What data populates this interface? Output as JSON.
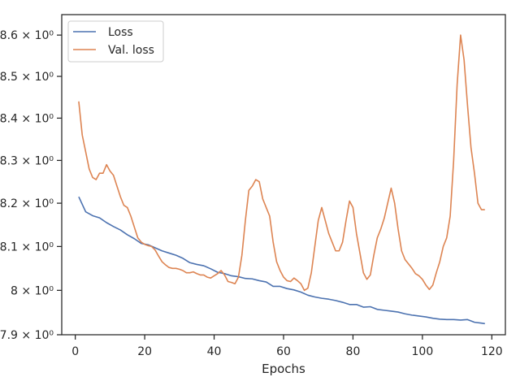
{
  "chart_data": {
    "type": "line",
    "xlabel": "Epochs",
    "ylabel": "",
    "xlim": [
      -3.9,
      123.9
    ],
    "ylim": [
      7.9,
      8.65
    ],
    "yscale": "log",
    "grid": false,
    "legend_position": "top-left",
    "x_ticks": [
      {
        "value": 0,
        "label": "0"
      },
      {
        "value": 20,
        "label": "20"
      },
      {
        "value": 40,
        "label": "40"
      },
      {
        "value": 60,
        "label": "60"
      },
      {
        "value": 80,
        "label": "80"
      },
      {
        "value": 100,
        "label": "100"
      },
      {
        "value": 120,
        "label": "120"
      }
    ],
    "y_ticks": [
      {
        "value": 7.9,
        "label": "7.9 × 10⁰"
      },
      {
        "value": 8.0,
        "label": "8 × 10⁰"
      },
      {
        "value": 8.1,
        "label": "8.1 × 10⁰"
      },
      {
        "value": 8.2,
        "label": "8.2 × 10⁰"
      },
      {
        "value": 8.3,
        "label": "8.3 × 10⁰"
      },
      {
        "value": 8.4,
        "label": "8.4 × 10⁰"
      },
      {
        "value": 8.5,
        "label": "8.5 × 10⁰"
      },
      {
        "value": 8.6,
        "label": "8.6 × 10⁰"
      }
    ],
    "series": [
      {
        "name": "Loss",
        "color": "#4c72b0",
        "x": [
          1,
          3,
          5,
          7,
          9,
          11,
          13,
          15,
          17,
          19,
          21,
          23,
          25,
          27,
          29,
          31,
          33,
          35,
          37,
          39,
          41,
          43,
          45,
          47,
          49,
          51,
          53,
          55,
          57,
          59,
          61,
          63,
          65,
          67,
          69,
          71,
          73,
          75,
          77,
          79,
          81,
          83,
          85,
          87,
          89,
          91,
          93,
          95,
          97,
          99,
          101,
          103,
          105,
          107,
          109,
          111,
          113,
          115,
          117,
          118
        ],
        "y": [
          8.215,
          8.18,
          8.171,
          8.166,
          8.155,
          8.146,
          8.138,
          8.127,
          8.118,
          8.107,
          8.104,
          8.097,
          8.09,
          8.085,
          8.08,
          8.073,
          8.063,
          8.059,
          8.056,
          8.049,
          8.041,
          8.038,
          8.033,
          8.031,
          8.027,
          8.026,
          8.022,
          8.019,
          8.009,
          8.009,
          8.004,
          8.001,
          7.996,
          7.989,
          7.985,
          7.982,
          7.98,
          7.977,
          7.973,
          7.968,
          7.968,
          7.962,
          7.963,
          7.957,
          7.955,
          7.953,
          7.951,
          7.947,
          7.944,
          7.942,
          7.94,
          7.937,
          7.935,
          7.934,
          7.934,
          7.933,
          7.934,
          7.928,
          7.926,
          7.925
        ]
      },
      {
        "name": "Val. loss",
        "color": "#dd8452",
        "x": [
          1,
          2,
          3,
          4,
          5,
          6,
          7,
          8,
          9,
          10,
          11,
          12,
          13,
          14,
          15,
          16,
          17,
          18,
          19,
          20,
          21,
          22,
          23,
          24,
          25,
          26,
          27,
          28,
          29,
          30,
          31,
          32,
          33,
          34,
          35,
          36,
          37,
          38,
          39,
          40,
          41,
          42,
          43,
          44,
          45,
          46,
          47,
          48,
          49,
          50,
          51,
          52,
          53,
          54,
          55,
          56,
          57,
          58,
          59,
          60,
          61,
          62,
          63,
          64,
          65,
          66,
          67,
          68,
          69,
          70,
          71,
          72,
          73,
          74,
          75,
          76,
          77,
          78,
          79,
          80,
          81,
          82,
          83,
          84,
          85,
          86,
          87,
          88,
          89,
          90,
          91,
          92,
          93,
          94,
          95,
          96,
          97,
          98,
          99,
          100,
          101,
          102,
          103,
          104,
          105,
          106,
          107,
          108,
          109,
          110,
          111,
          112,
          113,
          114,
          115,
          116,
          117,
          118
        ],
        "y": [
          8.44,
          8.36,
          8.32,
          8.28,
          8.26,
          8.255,
          8.27,
          8.27,
          8.29,
          8.275,
          8.265,
          8.24,
          8.215,
          8.195,
          8.19,
          8.17,
          8.145,
          8.12,
          8.11,
          8.105,
          8.102,
          8.1,
          8.092,
          8.078,
          8.065,
          8.058,
          8.052,
          8.05,
          8.05,
          8.048,
          8.045,
          8.04,
          8.04,
          8.042,
          8.038,
          8.035,
          8.035,
          8.03,
          8.028,
          8.033,
          8.038,
          8.045,
          8.035,
          8.02,
          8.018,
          8.015,
          8.03,
          8.08,
          8.16,
          8.23,
          8.24,
          8.255,
          8.25,
          8.21,
          8.19,
          8.17,
          8.11,
          8.065,
          8.045,
          8.03,
          8.022,
          8.02,
          8.028,
          8.022,
          8.015,
          8.0,
          8.005,
          8.04,
          8.1,
          8.16,
          8.19,
          8.16,
          8.13,
          8.11,
          8.09,
          8.09,
          8.11,
          8.16,
          8.205,
          8.19,
          8.13,
          8.085,
          8.04,
          8.025,
          8.035,
          8.08,
          8.12,
          8.14,
          8.165,
          8.2,
          8.235,
          8.2,
          8.14,
          8.09,
          8.07,
          8.06,
          8.05,
          8.038,
          8.033,
          8.025,
          8.012,
          8.002,
          8.012,
          8.04,
          8.065,
          8.1,
          8.12,
          8.17,
          8.3,
          8.48,
          8.6,
          8.54,
          8.43,
          8.33,
          8.27,
          8.2,
          8.185,
          8.185
        ]
      }
    ]
  }
}
